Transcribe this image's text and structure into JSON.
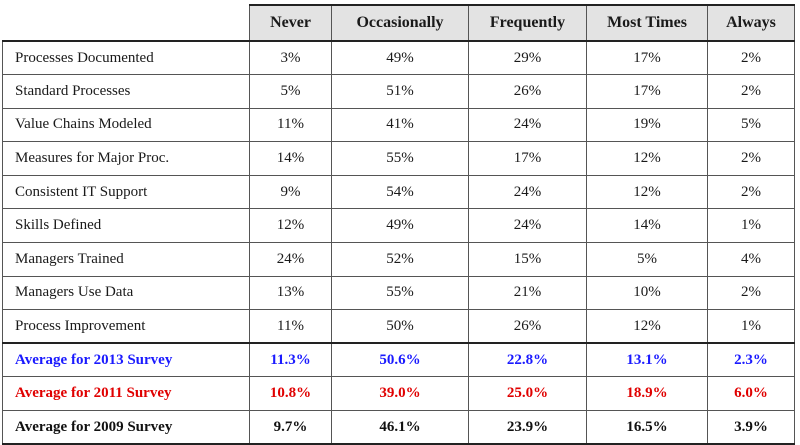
{
  "chart_data": {
    "type": "table",
    "columns": [
      "Never",
      "Occasionally",
      "Frequently",
      "Most Times",
      "Always"
    ],
    "rows": [
      {
        "label": "Processes Documented",
        "values": [
          "3%",
          "49%",
          "29%",
          "17%",
          "2%"
        ]
      },
      {
        "label": "Standard Processes",
        "values": [
          "5%",
          "51%",
          "26%",
          "17%",
          "2%"
        ]
      },
      {
        "label": "Value Chains Modeled",
        "values": [
          "11%",
          "41%",
          "24%",
          "19%",
          "5%"
        ]
      },
      {
        "label": "Measures for Major Proc.",
        "values": [
          "14%",
          "55%",
          "17%",
          "12%",
          "2%"
        ]
      },
      {
        "label": "Consistent IT Support",
        "values": [
          "9%",
          "54%",
          "24%",
          "12%",
          "2%"
        ]
      },
      {
        "label": "Skills Defined",
        "values": [
          "12%",
          "49%",
          "24%",
          "14%",
          "1%"
        ]
      },
      {
        "label": "Managers Trained",
        "values": [
          "24%",
          "52%",
          "15%",
          "5%",
          "4%"
        ]
      },
      {
        "label": "Managers Use Data",
        "values": [
          "13%",
          "55%",
          "21%",
          "10%",
          "2%"
        ]
      },
      {
        "label": "Process Improvement",
        "values": [
          "11%",
          "50%",
          "26%",
          "12%",
          "1%"
        ]
      }
    ],
    "averages": [
      {
        "label": "Average for 2013 Survey",
        "color": "#1a1aff",
        "values": [
          "11.3%",
          "50.6%",
          "22.8%",
          "13.1%",
          "2.3%"
        ]
      },
      {
        "label": "Average for 2011 Survey",
        "color": "#e00000",
        "values": [
          "10.8%",
          "39.0%",
          "25.0%",
          "18.9%",
          "6.0%"
        ]
      },
      {
        "label": "Average for 2009 Survey",
        "color": "#111111",
        "values": [
          "9.7%",
          "46.1%",
          "23.9%",
          "16.5%",
          "3.9%"
        ]
      }
    ]
  }
}
